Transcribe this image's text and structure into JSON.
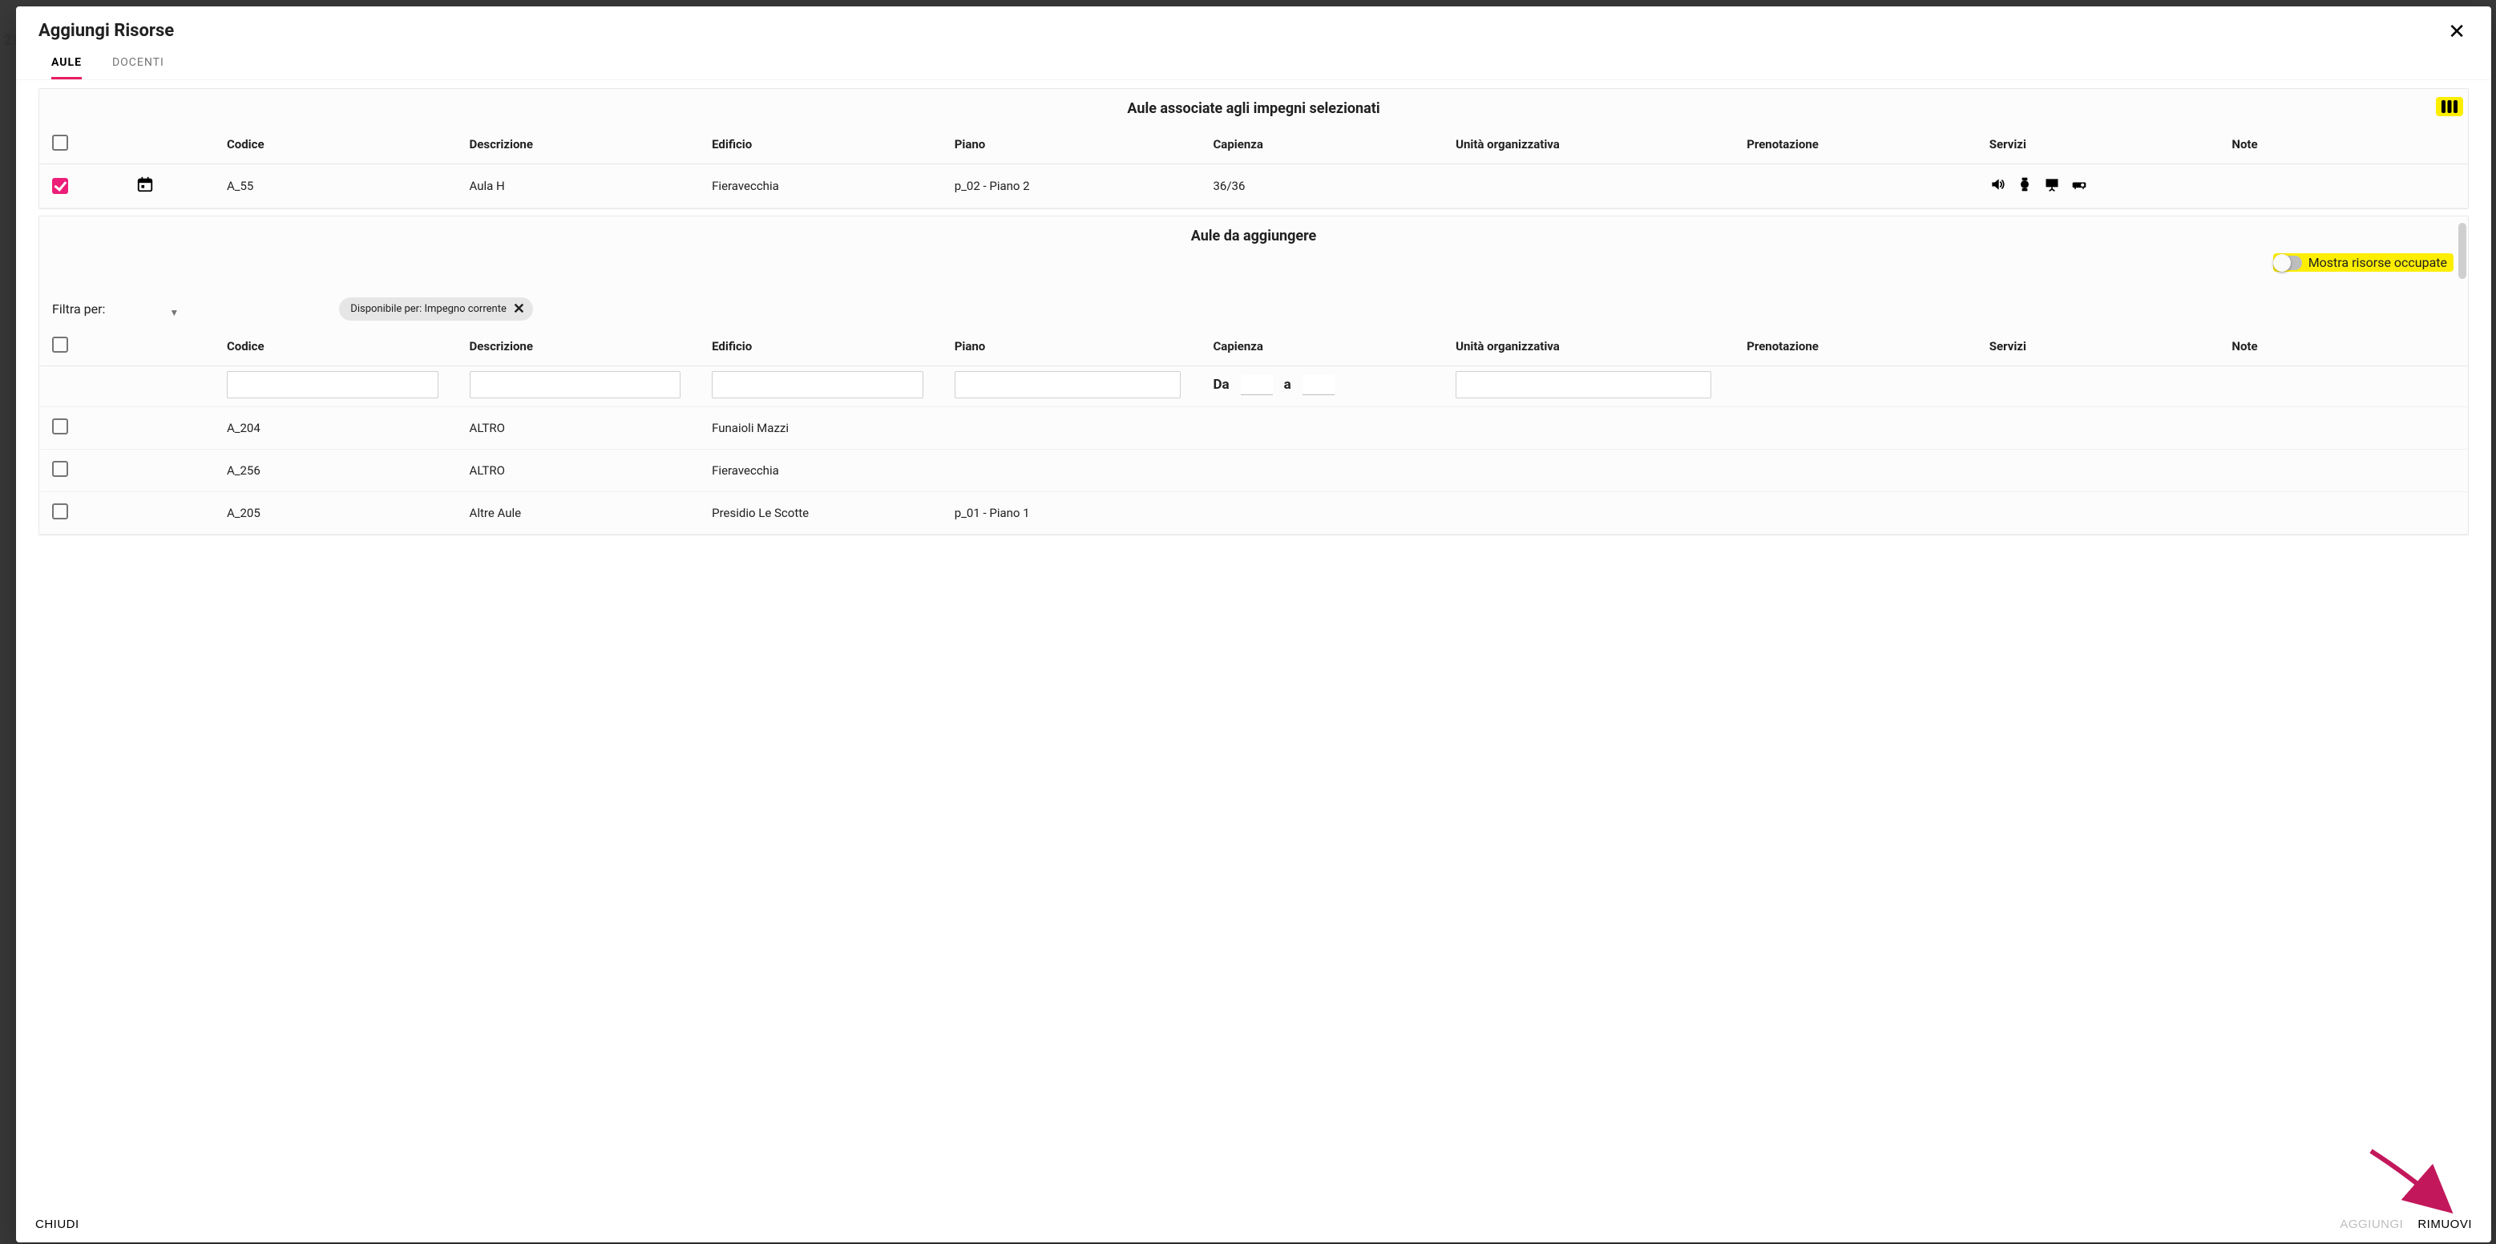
{
  "backdrop_hint": "21",
  "modal": {
    "title": "Aggiungi Risorse",
    "tabs": [
      {
        "label": "AULE",
        "active": true
      },
      {
        "label": "DOCENTI",
        "active": false
      }
    ],
    "close_label": "✕"
  },
  "colors": {
    "accent": "#e91e63",
    "highlight": "#fdee00",
    "arrow": "#c2185b"
  },
  "columns": {
    "codice": "Codice",
    "descrizione": "Descrizione",
    "edificio": "Edificio",
    "piano": "Piano",
    "capienza": "Capienza",
    "unita": "Unità organizzativa",
    "prenotazione": "Prenotazione",
    "servizi": "Servizi",
    "note": "Note"
  },
  "section_assoc": {
    "title": "Aule associate agli impegni selezionati",
    "rows": [
      {
        "checked": true,
        "has_calendar": true,
        "codice": "A_55",
        "descrizione": "Aula H",
        "edificio": "Fieravecchia",
        "piano": "p_02 - Piano 2",
        "capienza": "36/36",
        "unita": "",
        "prenotazione": "",
        "servizi_icons": [
          "volume",
          "watch",
          "board",
          "projector"
        ],
        "note": ""
      }
    ]
  },
  "section_add": {
    "title": "Aule da aggiungere",
    "toggle_label": "Mostra risorse occupate",
    "toggle_on": false,
    "filter_label": "Filtra per:",
    "chip_label": "Disponibile per: Impegno corrente",
    "cap_from_label": "Da",
    "cap_to_label": "a",
    "rows": [
      {
        "checked": false,
        "codice": "A_204",
        "descrizione": "ALTRO",
        "edificio": "Funaioli Mazzi",
        "piano": "",
        "capienza": "",
        "unita": "",
        "prenotazione": "",
        "note": ""
      },
      {
        "checked": false,
        "codice": "A_256",
        "descrizione": "ALTRO",
        "edificio": "Fieravecchia",
        "piano": "",
        "capienza": "",
        "unita": "",
        "prenotazione": "",
        "note": ""
      },
      {
        "checked": false,
        "codice": "A_205",
        "descrizione": "Altre Aule",
        "edificio": "Presidio Le Scotte",
        "piano": "p_01 - Piano 1",
        "capienza": "",
        "unita": "",
        "prenotazione": "",
        "note": ""
      }
    ]
  },
  "footer": {
    "close": "CHIUDI",
    "add": "AGGIUNGI",
    "remove": "RIMUOVI"
  },
  "col_widths": {
    "chk": "56px",
    "cal": "56px",
    "codice": "150px",
    "descrizione": "150px",
    "edificio": "150px",
    "piano": "160px",
    "capienza": "150px",
    "unita": "180px",
    "prenotazione": "150px",
    "servizi": "150px",
    "note": "150px"
  }
}
